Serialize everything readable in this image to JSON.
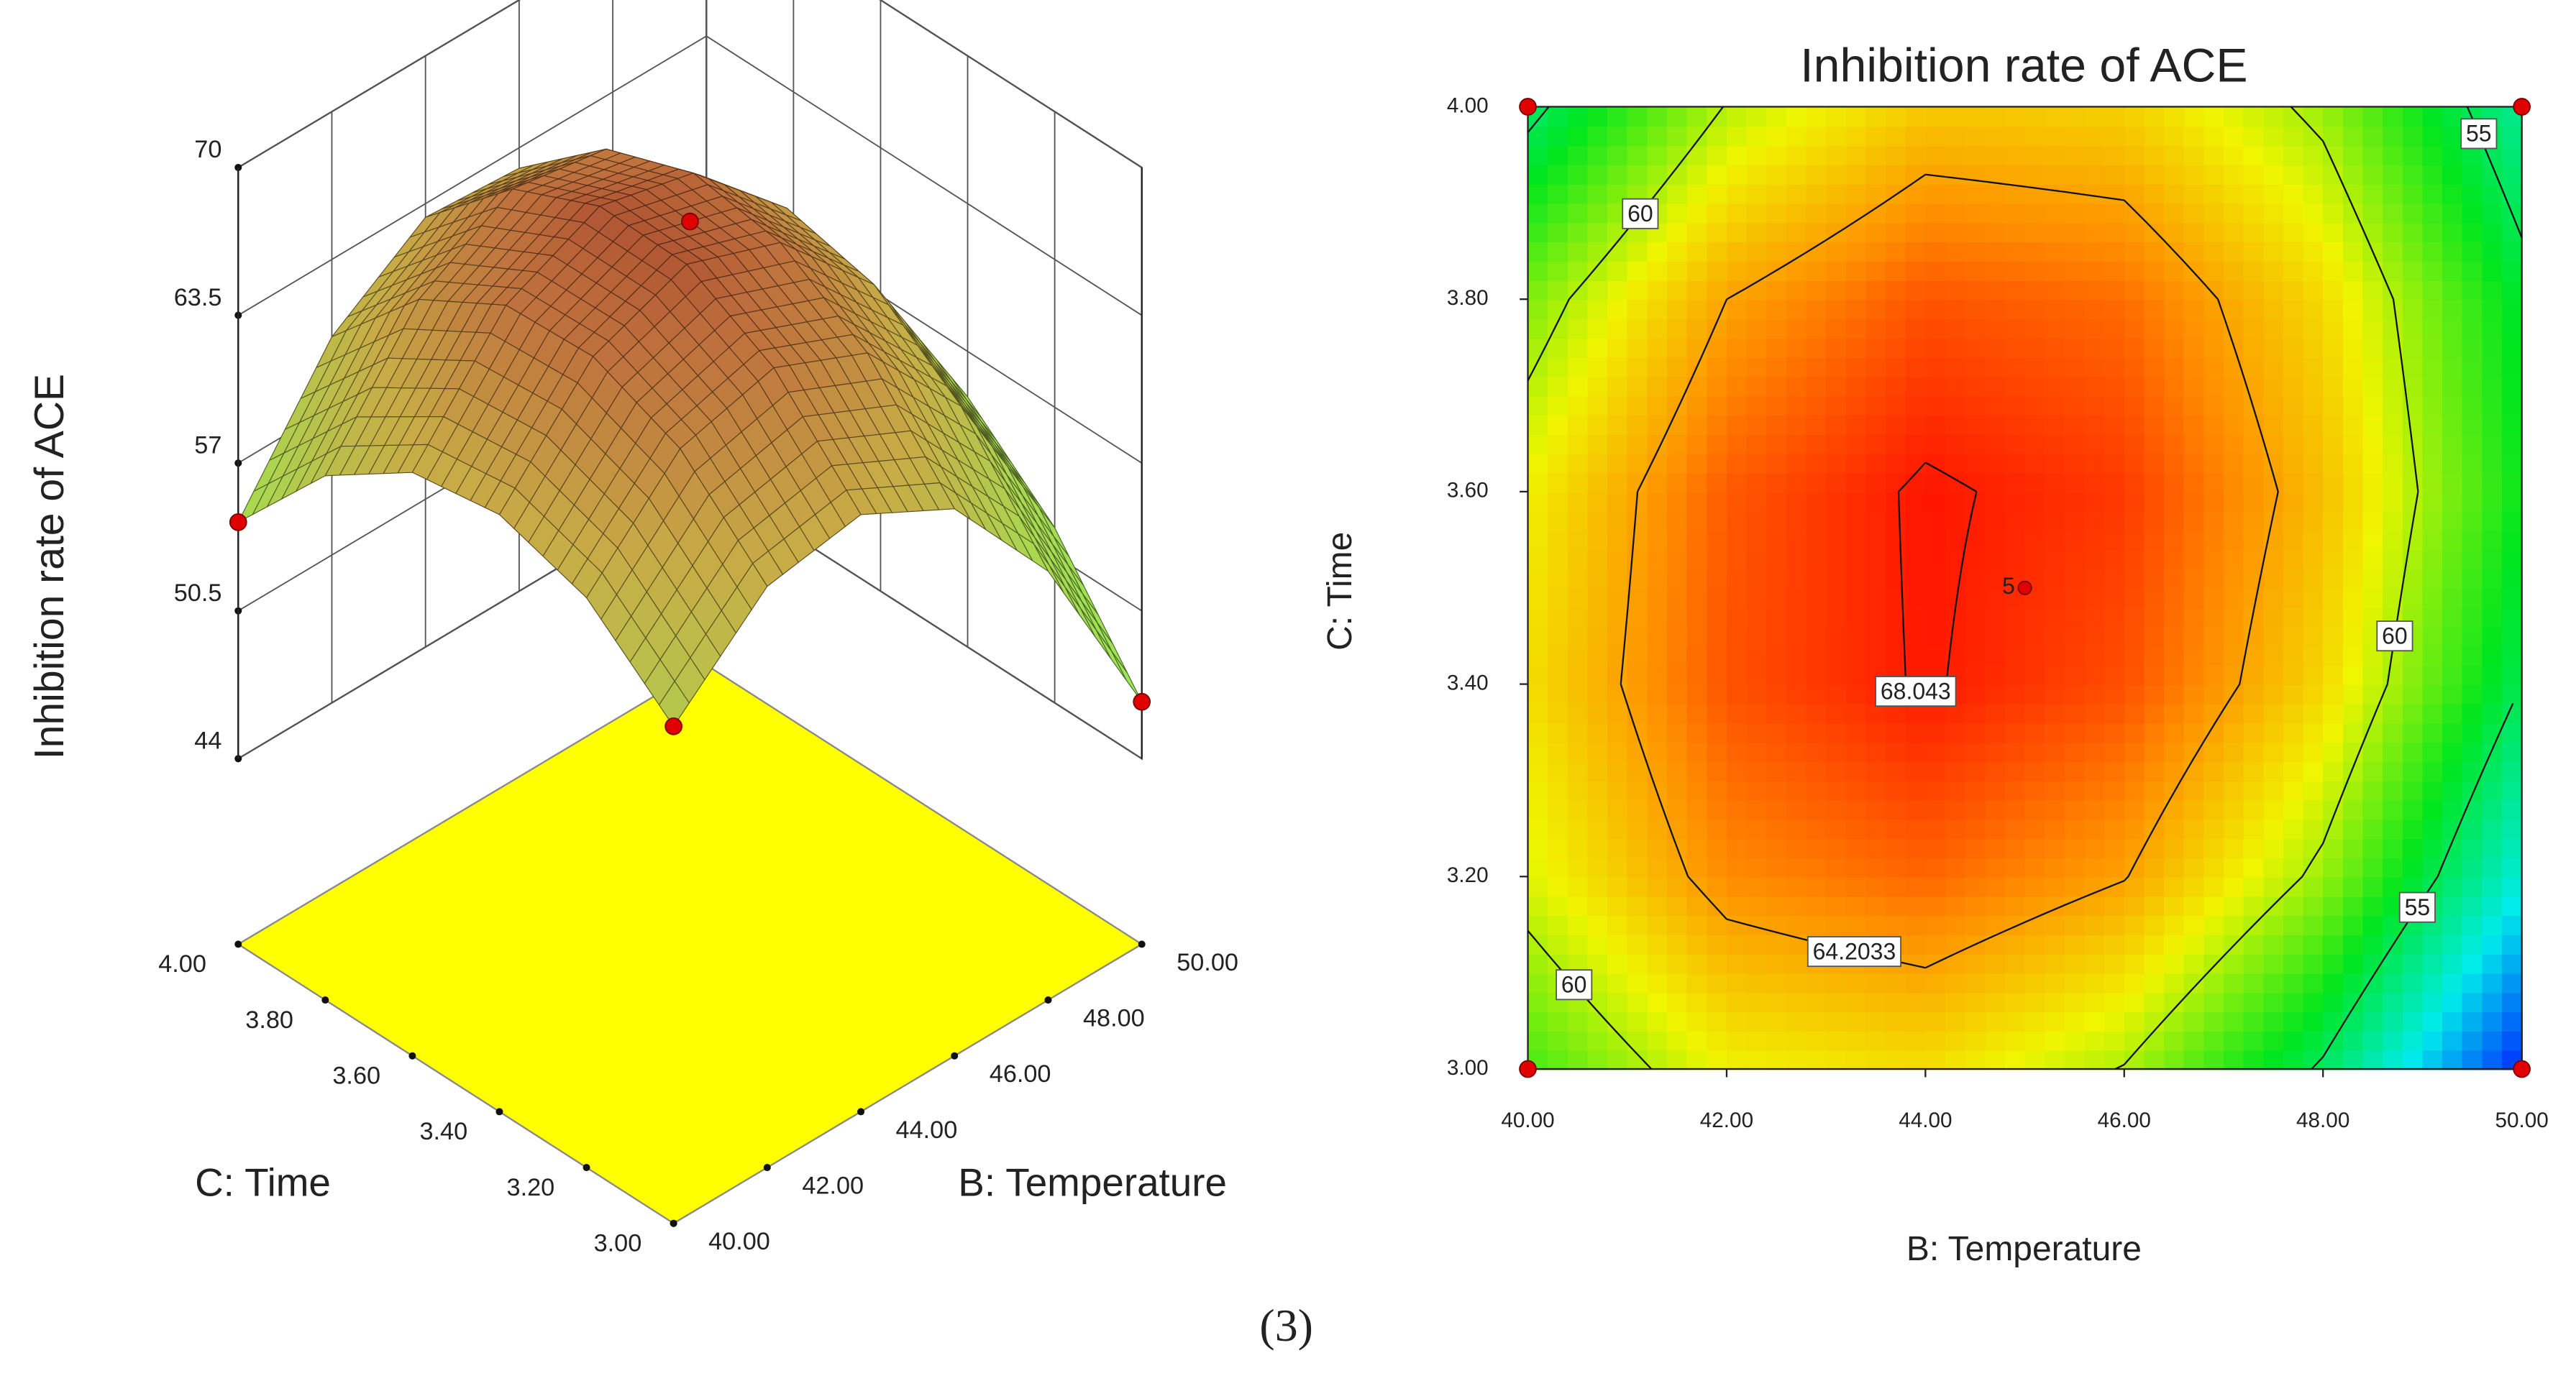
{
  "chart_data": [
    {
      "type": "surface3d",
      "zlabel": "Inhibition rate of ACE",
      "xlabel": "B: Temperature",
      "ylabel": "C: Time",
      "x": [
        40,
        42,
        44,
        46,
        48,
        50
      ],
      "y": [
        3,
        3.2,
        3.4,
        3.6,
        3.8,
        4
      ],
      "z": [
        [
          57.7,
          61.4,
          62.1,
          59.9,
          54.7,
          46.5
        ],
        [
          60.9,
          65,
          66.1,
          64.3,
          59.5,
          51.7
        ],
        [
          62.1,
          66.6,
          68.2,
          66.7,
          62.4,
          55
        ],
        [
          61.5,
          66.4,
          68.3,
          67.3,
          63.3,
          56.4
        ],
        [
          58.9,
          64.2,
          66.6,
          65.9,
          62.3,
          55.8
        ],
        [
          54.4,
          60.1,
          62.9,
          62.6,
          59.5,
          53.3
        ]
      ],
      "xlim": [
        40,
        50
      ],
      "xticks": [
        {
          "value": 40,
          "label": "40.00"
        },
        {
          "value": 42,
          "label": "42.00"
        },
        {
          "value": 44,
          "label": "44.00"
        },
        {
          "value": 46,
          "label": "46.00"
        },
        {
          "value": 48,
          "label": "48.00"
        },
        {
          "value": 50,
          "label": "50.00"
        }
      ],
      "ylim": [
        3,
        4
      ],
      "yticks": [
        {
          "value": 3,
          "label": "3.00"
        },
        {
          "value": 3.2,
          "label": "3.20"
        },
        {
          "value": 3.4,
          "label": "3.40"
        },
        {
          "value": 3.6,
          "label": "3.60"
        },
        {
          "value": 3.8,
          "label": "3.80"
        },
        {
          "value": 4,
          "label": "4.00"
        }
      ],
      "zlim": [
        44,
        70
      ],
      "zticks": [
        44,
        50.5,
        57,
        63.5,
        70
      ],
      "floor_color": "#ffff00",
      "design_points": {
        "x": [
          40,
          40,
          50,
          45
        ],
        "y": [
          3,
          4,
          3,
          3.5
        ],
        "color": "#e00000"
      }
    },
    {
      "type": "contour",
      "title": "Inhibition rate of ACE",
      "xlabel": "B: Temperature",
      "ylabel": "C: Time",
      "x": [
        40,
        42,
        44,
        46,
        48,
        50
      ],
      "y": [
        3,
        3.2,
        3.4,
        3.6,
        3.8,
        4
      ],
      "z": [
        [
          57.7,
          61.4,
          62.1,
          59.9,
          54.7,
          46.5
        ],
        [
          60.9,
          65,
          66.1,
          64.3,
          59.5,
          51.7
        ],
        [
          62.1,
          66.6,
          68.2,
          66.7,
          62.4,
          55
        ],
        [
          61.5,
          66.4,
          68.3,
          67.3,
          63.3,
          56.4
        ],
        [
          58.9,
          64.2,
          66.6,
          65.9,
          62.3,
          55.8
        ],
        [
          54.4,
          60.1,
          62.9,
          62.6,
          59.5,
          53.3
        ]
      ],
      "xlim": [
        40,
        50
      ],
      "xticks": [
        {
          "value": 40,
          "label": "40.00"
        },
        {
          "value": 42,
          "label": "42.00"
        },
        {
          "value": 44,
          "label": "44.00"
        },
        {
          "value": 46,
          "label": "46.00"
        },
        {
          "value": 48,
          "label": "48.00"
        },
        {
          "value": 50,
          "label": "50.00"
        }
      ],
      "ylim": [
        3,
        4
      ],
      "yticks": [
        {
          "value": 3,
          "label": "3.00"
        },
        {
          "value": 3.2,
          "label": "3.20"
        },
        {
          "value": 3.4,
          "label": "3.40"
        },
        {
          "value": 3.6,
          "label": "3.60"
        },
        {
          "value": 3.8,
          "label": "3.80"
        },
        {
          "value": 4,
          "label": "4.00"
        }
      ],
      "contour_levels": [
        55,
        60,
        64.2033,
        68.043
      ],
      "design_points": {
        "x": [
          40,
          50,
          40,
          50,
          45
        ],
        "y": [
          3,
          3,
          4,
          4,
          3.5
        ],
        "color": "#e00000"
      },
      "center_point_label": 5
    }
  ],
  "caption": "(3)"
}
